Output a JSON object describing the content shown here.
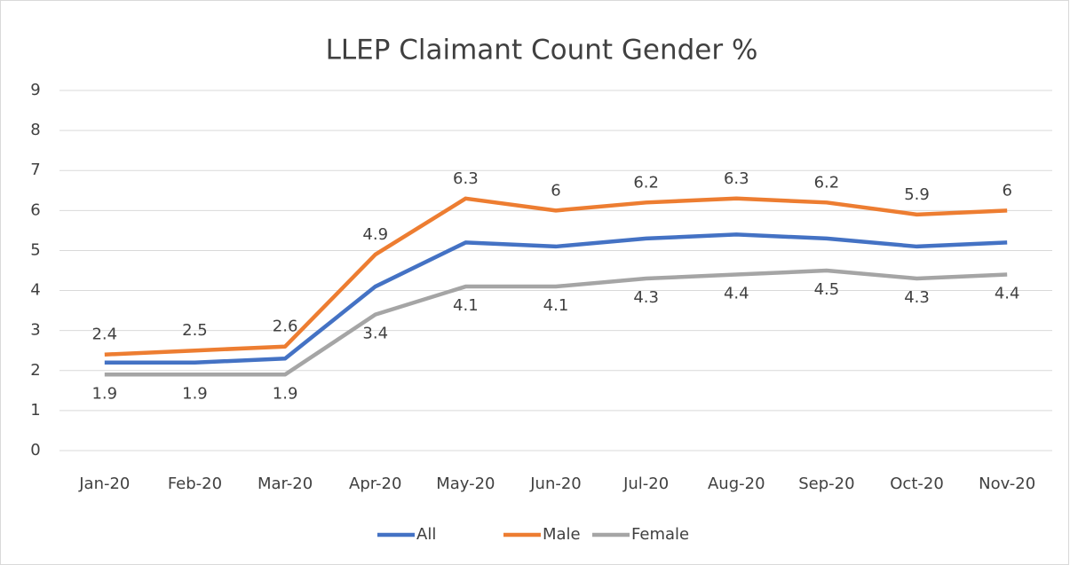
{
  "chart_data": {
    "type": "line",
    "title": "LLEP Claimant Count Gender %",
    "categories": [
      "Jan-20",
      "Feb-20",
      "Mar-20",
      "Apr-20",
      "May-20",
      "Jun-20",
      "Jul-20",
      "Aug-20",
      "Sep-20",
      "Oct-20",
      "Nov-20"
    ],
    "series": [
      {
        "name": "All",
        "color": "#4472c4",
        "values": [
          2.2,
          2.2,
          2.3,
          4.1,
          5.2,
          5.1,
          5.3,
          5.4,
          5.3,
          5.1,
          5.2
        ]
      },
      {
        "name": "Male",
        "color": "#ed7d31",
        "values": [
          2.4,
          2.5,
          2.6,
          4.9,
          6.3,
          6,
          6.2,
          6.3,
          6.2,
          5.9,
          6
        ]
      },
      {
        "name": "Female",
        "color": "#a5a5a5",
        "values": [
          1.9,
          1.9,
          1.9,
          3.4,
          4.1,
          4.1,
          4.3,
          4.4,
          4.5,
          4.3,
          4.4
        ]
      }
    ],
    "ylim": [
      0,
      9
    ],
    "yticks": [
      0,
      1,
      2,
      3,
      4,
      5,
      6,
      7,
      8,
      9
    ],
    "grid": true,
    "legend": "bottom"
  }
}
